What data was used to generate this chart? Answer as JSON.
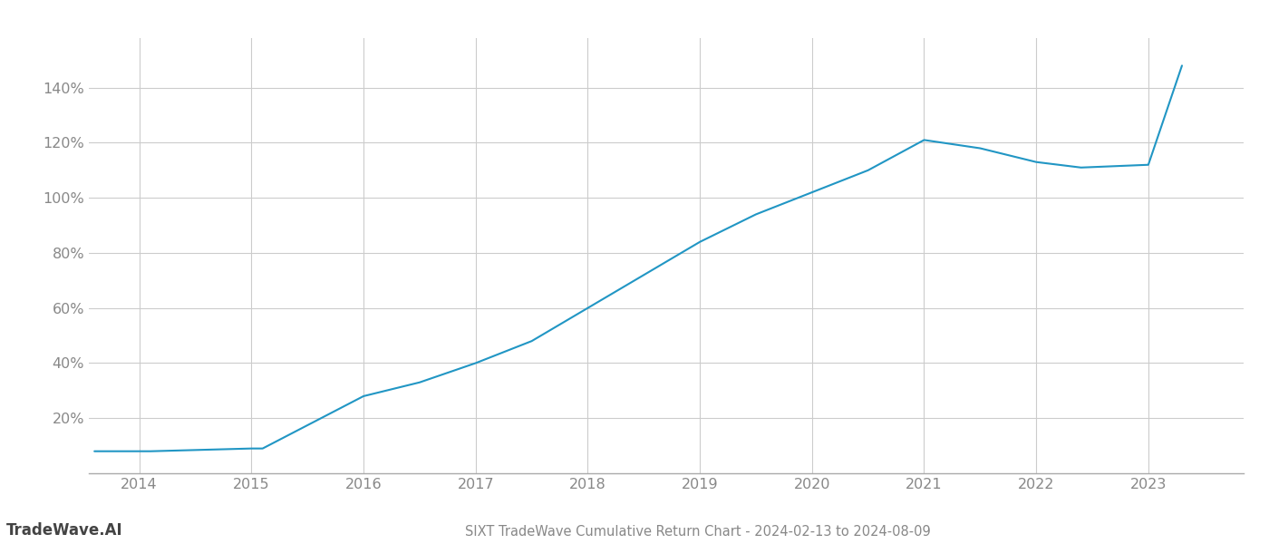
{
  "title": "SIXT TradeWave Cumulative Return Chart - 2024-02-13 to 2024-08-09",
  "watermark": "TradeWave.AI",
  "line_color": "#2196C4",
  "background_color": "#ffffff",
  "grid_color": "#cccccc",
  "x_years": [
    2014,
    2015,
    2016,
    2017,
    2018,
    2019,
    2020,
    2021,
    2022,
    2023
  ],
  "x_values": [
    2013.6,
    2014.1,
    2015.0,
    2015.1,
    2016.0,
    2016.5,
    2017.0,
    2017.5,
    2018.0,
    2018.5,
    2019.0,
    2019.5,
    2020.0,
    2020.5,
    2021.0,
    2021.5,
    2022.0,
    2022.4,
    2023.0,
    2023.3
  ],
  "y_values": [
    0.08,
    0.08,
    0.09,
    0.09,
    0.28,
    0.33,
    0.4,
    0.48,
    0.6,
    0.72,
    0.84,
    0.94,
    1.02,
    1.1,
    1.21,
    1.18,
    1.13,
    1.11,
    1.12,
    1.48
  ],
  "yticks": [
    0.2,
    0.4,
    0.6,
    0.8,
    1.0,
    1.2,
    1.4
  ],
  "ylim": [
    0.0,
    1.58
  ],
  "xlim_left": 2013.55,
  "xlim_right": 2023.85,
  "title_fontsize": 10.5,
  "tick_fontsize": 11.5,
  "watermark_fontsize": 12,
  "title_color": "#888888",
  "tick_color": "#888888",
  "watermark_color": "#444444"
}
